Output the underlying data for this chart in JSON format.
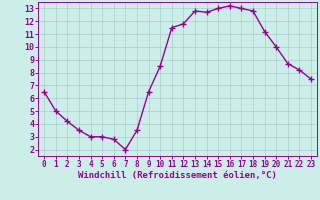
{
  "x": [
    0,
    1,
    2,
    3,
    4,
    5,
    6,
    7,
    8,
    9,
    10,
    11,
    12,
    13,
    14,
    15,
    16,
    17,
    18,
    19,
    20,
    21,
    22,
    23
  ],
  "y": [
    6.5,
    5.0,
    4.2,
    3.5,
    3.0,
    3.0,
    2.8,
    2.0,
    3.5,
    6.5,
    8.5,
    11.5,
    11.8,
    12.8,
    12.7,
    13.0,
    13.2,
    13.0,
    12.8,
    11.2,
    10.0,
    8.7,
    8.2,
    7.5
  ],
  "line_color": "#990099",
  "marker": "+",
  "markersize": 4,
  "linewidth": 1.0,
  "xlabel": "Windchill (Refroidissement éolien,°C)",
  "xlabel_fontsize": 6.5,
  "bg_color": "#cceee8",
  "grid_color": "#aacccc",
  "tick_color": "#990099",
  "label_color": "#990099",
  "xlim": [
    -0.5,
    23.5
  ],
  "ylim": [
    1.5,
    13.5
  ],
  "yticks": [
    2,
    3,
    4,
    5,
    6,
    7,
    8,
    9,
    10,
    11,
    12,
    13
  ],
  "xticks": [
    0,
    1,
    2,
    3,
    4,
    5,
    6,
    7,
    8,
    9,
    10,
    11,
    12,
    13,
    14,
    15,
    16,
    17,
    18,
    19,
    20,
    21,
    22,
    23
  ]
}
